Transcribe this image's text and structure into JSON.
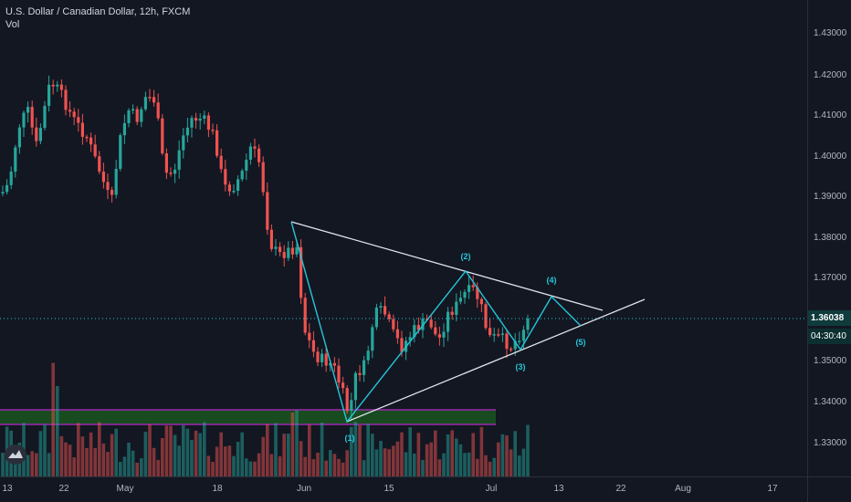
{
  "legend": {
    "title": "U.S. Dollar / Canadian Dollar, 12h, FXCM",
    "volume": "Vol"
  },
  "price_axis": {
    "labels": [
      "1.43000",
      "1.42000",
      "1.41000",
      "1.40000",
      "1.39000",
      "1.38000",
      "1.37000",
      "1.35000",
      "1.34000",
      "1.33000"
    ],
    "current_price": "1.36038",
    "countdown": "04:30:40"
  },
  "time_axis": {
    "labels": [
      "13",
      "22",
      "May",
      "18",
      "Jun",
      "15",
      "Jul",
      "13",
      "22",
      "Aug",
      "17"
    ]
  },
  "wave_labels": [
    "(1)",
    "(2)",
    "(3)",
    "(4)",
    "(5)"
  ],
  "colors": {
    "background": "#131722",
    "up_candle": "#26a69a",
    "down_candle": "#ef5350",
    "wave_lines": "#26c6da",
    "triangle_lines": "#e0e3eb",
    "current_price_line": "#26c6da",
    "support_zone": "#1b5e20",
    "support_zone_border": "#9c27b0"
  },
  "icons": {
    "logo": "tradingview-logo-icon"
  }
}
